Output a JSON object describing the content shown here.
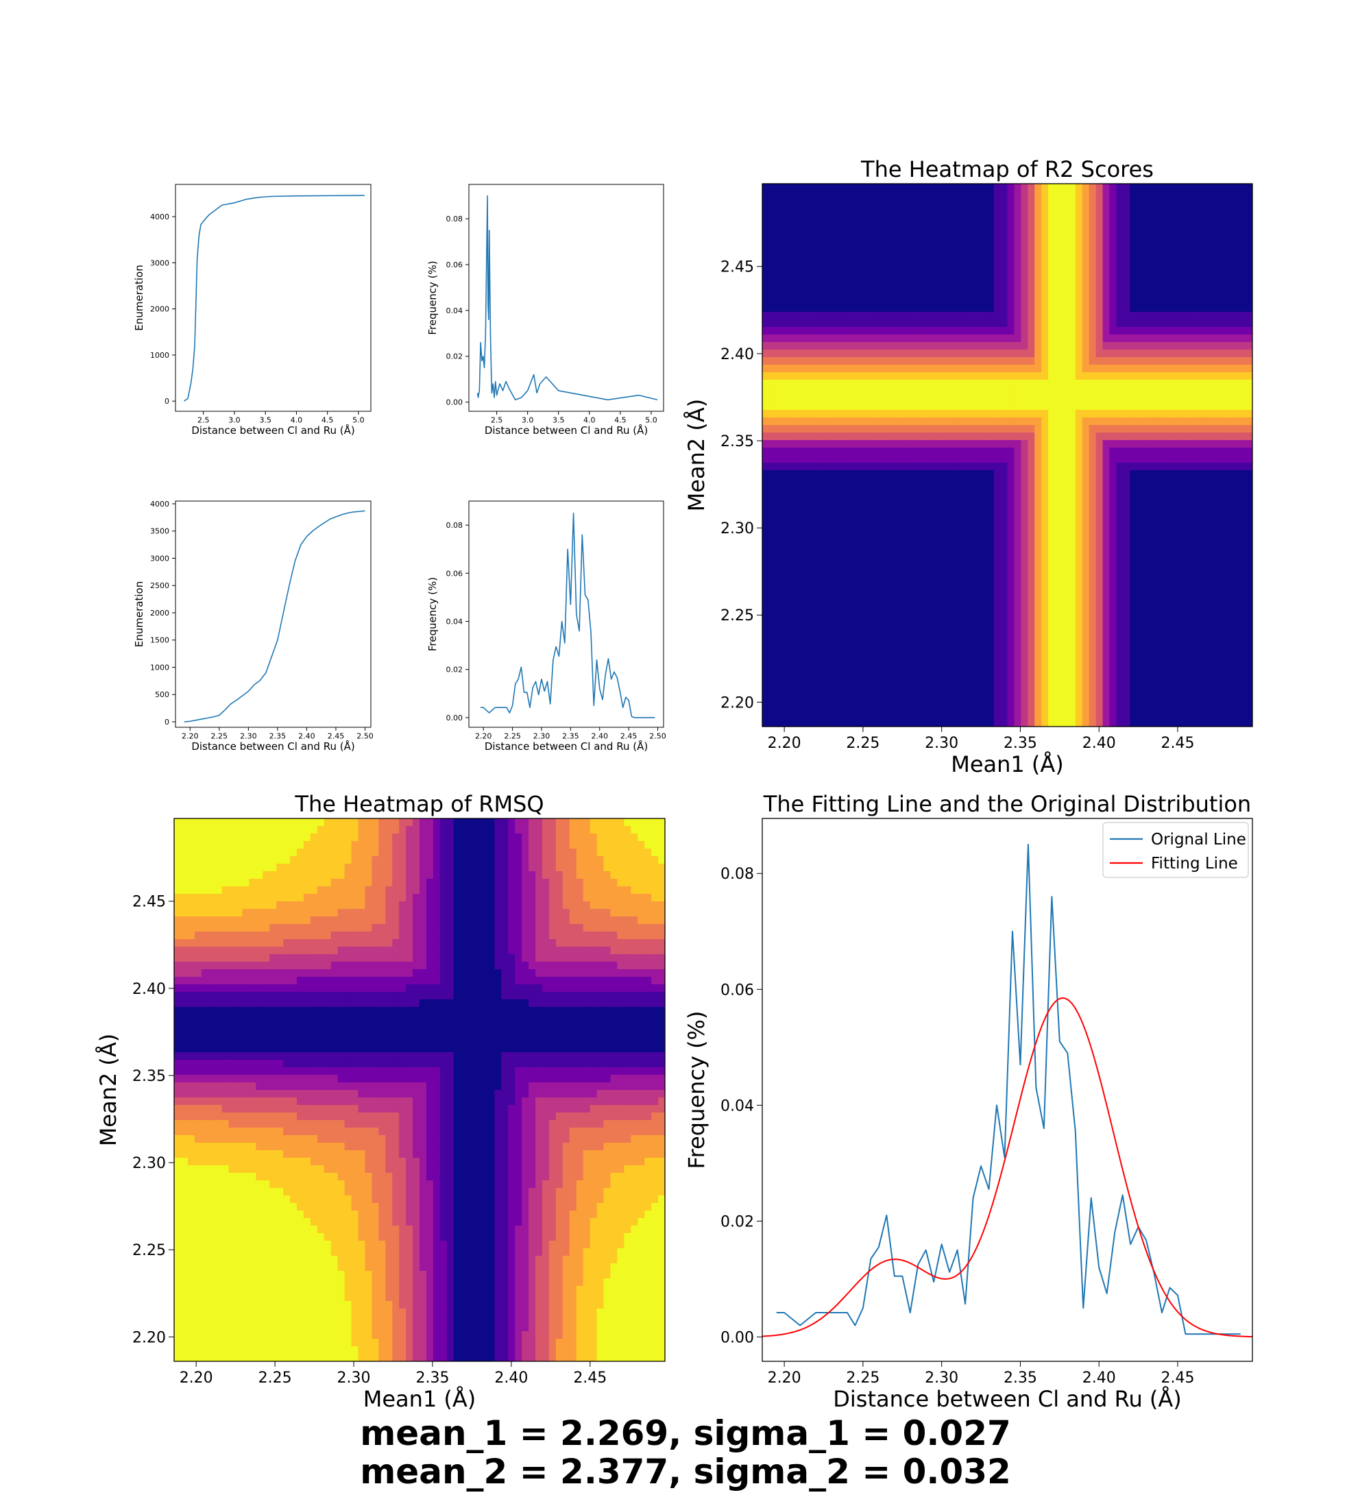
{
  "colors": {
    "line": "#1f77b4",
    "fit": "#ff0000",
    "axis": "#000000",
    "plasma": [
      "#0d0887",
      "#46039f",
      "#7201a8",
      "#9c179e",
      "#bd3786",
      "#d8576b",
      "#ed7953",
      "#fb9f3a",
      "#fdca26",
      "#f0f921"
    ]
  },
  "footer": {
    "line1": "mean_1 = 2.269, sigma_1 = 0.027",
    "line2": "mean_2 = 2.377, sigma_2 = 0.032"
  },
  "chart_data": [
    {
      "id": "p1",
      "type": "line",
      "xlabel": "Distance between Cl and Ru (Å)",
      "ylabel": "Enumeration",
      "xlim": [
        2.05,
        5.2
      ],
      "ylim": [
        -220,
        4700
      ],
      "xticks": [
        2.5,
        3.0,
        3.5,
        4.0,
        4.5,
        5.0
      ],
      "xticklabels": [
        "2.5",
        "3.0",
        "3.5",
        "4.0",
        "4.5",
        "5.0"
      ],
      "yticks": [
        0,
        1000,
        2000,
        3000,
        4000
      ],
      "yticklabels": [
        "0",
        "1000",
        "2000",
        "3000",
        "4000"
      ],
      "series": [
        {
          "x": [
            2.19,
            2.25,
            2.3,
            2.33,
            2.36,
            2.4,
            2.43,
            2.46,
            2.5,
            2.55,
            2.6,
            2.7,
            2.8,
            3.0,
            3.2,
            3.4,
            3.6,
            4.0,
            4.5,
            5.1
          ],
          "y": [
            0,
            60,
            400,
            700,
            1200,
            3100,
            3600,
            3830,
            3900,
            3980,
            4050,
            4150,
            4250,
            4300,
            4380,
            4420,
            4440,
            4450,
            4455,
            4460
          ]
        }
      ]
    },
    {
      "id": "p2",
      "type": "line",
      "xlabel": "Distance between Cl and Ru (Å)",
      "ylabel": "Frequency (%)",
      "xlim": [
        2.05,
        5.2
      ],
      "ylim": [
        -0.004,
        0.095
      ],
      "xticks": [
        2.5,
        3.0,
        3.5,
        4.0,
        4.5,
        5.0
      ],
      "xticklabels": [
        "2.5",
        "3.0",
        "3.5",
        "4.0",
        "4.5",
        "5.0"
      ],
      "yticks": [
        0.0,
        0.02,
        0.04,
        0.06,
        0.08
      ],
      "yticklabels": [
        "0.00",
        "0.02",
        "0.04",
        "0.06",
        "0.08"
      ],
      "series": [
        {
          "x": [
            2.19,
            2.2,
            2.22,
            2.24,
            2.26,
            2.28,
            2.3,
            2.32,
            2.34,
            2.35,
            2.36,
            2.37,
            2.38,
            2.39,
            2.4,
            2.42,
            2.44,
            2.46,
            2.48,
            2.5,
            2.55,
            2.6,
            2.65,
            2.7,
            2.8,
            2.9,
            3.0,
            3.1,
            3.15,
            3.2,
            3.3,
            3.5,
            4.3,
            4.8,
            5.1
          ],
          "y": [
            0.004,
            0.002,
            0.005,
            0.026,
            0.018,
            0.02,
            0.015,
            0.03,
            0.07,
            0.09,
            0.043,
            0.036,
            0.075,
            0.05,
            0.028,
            0.004,
            0.008,
            0.002,
            0.009,
            0.003,
            0.008,
            0.005,
            0.009,
            0.006,
            0.001,
            0.002,
            0.005,
            0.012,
            0.004,
            0.008,
            0.011,
            0.005,
            0.001,
            0.003,
            0.001
          ]
        }
      ]
    },
    {
      "id": "p3",
      "type": "line",
      "xlabel": "Distance between Cl and Ru (Å)",
      "ylabel": "Enumeration",
      "xlim": [
        2.175,
        2.51
      ],
      "ylim": [
        -100,
        4050
      ],
      "xticks": [
        2.2,
        2.25,
        2.3,
        2.35,
        2.4,
        2.45,
        2.5
      ],
      "xticklabels": [
        "2.20",
        "2.25",
        "2.30",
        "2.35",
        "2.40",
        "2.45",
        "2.50"
      ],
      "yticks": [
        0,
        500,
        1000,
        1500,
        2000,
        2500,
        3000,
        3500,
        4000
      ],
      "yticklabels": [
        "0",
        "500",
        "1000",
        "1500",
        "2000",
        "2500",
        "3000",
        "3500",
        "4000"
      ],
      "series": [
        {
          "x": [
            2.19,
            2.2,
            2.21,
            2.22,
            2.23,
            2.24,
            2.25,
            2.26,
            2.27,
            2.28,
            2.29,
            2.3,
            2.31,
            2.32,
            2.33,
            2.34,
            2.35,
            2.36,
            2.37,
            2.38,
            2.39,
            2.4,
            2.41,
            2.42,
            2.43,
            2.44,
            2.45,
            2.46,
            2.47,
            2.48,
            2.49,
            2.5
          ],
          "y": [
            0,
            10,
            30,
            50,
            70,
            90,
            120,
            220,
            330,
            400,
            480,
            560,
            680,
            760,
            900,
            1200,
            1500,
            2000,
            2500,
            2950,
            3250,
            3400,
            3500,
            3580,
            3650,
            3720,
            3760,
            3800,
            3830,
            3850,
            3860,
            3870
          ]
        }
      ]
    },
    {
      "id": "p4",
      "type": "line",
      "xlabel": "Distance between Cl and Ru (Å)",
      "ylabel": "Frequency (%)",
      "xlim": [
        2.175,
        2.51
      ],
      "ylim": [
        -0.004,
        0.09
      ],
      "xticks": [
        2.2,
        2.25,
        2.3,
        2.35,
        2.4,
        2.45,
        2.5
      ],
      "xticklabels": [
        "2.20",
        "2.25",
        "2.30",
        "2.35",
        "2.40",
        "2.45",
        "2.50"
      ],
      "yticks": [
        0.0,
        0.02,
        0.04,
        0.06,
        0.08
      ],
      "yticklabels": [
        "0.00",
        "0.02",
        "0.04",
        "0.06",
        "0.08"
      ],
      "series": [
        {
          "x": [
            2.195,
            2.2,
            2.21,
            2.22,
            2.23,
            2.24,
            2.245,
            2.25,
            2.255,
            2.26,
            2.265,
            2.27,
            2.275,
            2.28,
            2.285,
            2.29,
            2.295,
            2.3,
            2.305,
            2.31,
            2.315,
            2.32,
            2.325,
            2.33,
            2.335,
            2.34,
            2.345,
            2.35,
            2.355,
            2.36,
            2.365,
            2.37,
            2.375,
            2.38,
            2.385,
            2.39,
            2.395,
            2.4,
            2.405,
            2.41,
            2.415,
            2.42,
            2.425,
            2.43,
            2.435,
            2.44,
            2.445,
            2.45,
            2.455,
            2.46,
            2.465,
            2.47,
            2.475,
            2.48,
            2.485,
            2.49,
            2.495
          ],
          "y": [
            0.0042,
            0.0042,
            0.002,
            0.0042,
            0.0042,
            0.0042,
            0.002,
            0.005,
            0.014,
            0.016,
            0.021,
            0.0105,
            0.0105,
            0.0042,
            0.0125,
            0.015,
            0.0095,
            0.016,
            0.011,
            0.015,
            0.0057,
            0.024,
            0.0295,
            0.0255,
            0.04,
            0.031,
            0.07,
            0.047,
            0.085,
            0.043,
            0.036,
            0.076,
            0.051,
            0.049,
            0.0355,
            0.005,
            0.024,
            0.012,
            0.0075,
            0.018,
            0.0245,
            0.016,
            0.019,
            0.0167,
            0.011,
            0.0042,
            0.0085,
            0.0072,
            0.0005,
            0.0,
            0.0,
            0.0,
            0.0,
            0.0,
            0.0,
            0.0,
            0.0
          ]
        }
      ]
    },
    {
      "id": "h1",
      "type": "heatmap",
      "title": "The Heatmap of R2 Scores",
      "xlabel": "Mean1 (Å)",
      "ylabel": "Mean2 (Å)",
      "xlim": [
        2.186,
        2.4975
      ],
      "ylim": [
        2.186,
        2.4975
      ],
      "xticks": [
        2.2,
        2.25,
        2.3,
        2.35,
        2.4,
        2.45
      ],
      "xticklabels": [
        "2.20",
        "2.25",
        "2.30",
        "2.35",
        "2.40",
        "2.45"
      ],
      "yticks": [
        2.2,
        2.25,
        2.3,
        2.35,
        2.4,
        2.45
      ],
      "yticklabels": [
        "2.20",
        "2.25",
        "2.30",
        "2.35",
        "2.40",
        "2.45"
      ],
      "field": {
        "kind": "r2",
        "center_x": 2.377,
        "center_y": 2.377,
        "width_x": 0.028,
        "width_y": 0.03,
        "levels": 10
      }
    },
    {
      "id": "h2",
      "type": "heatmap",
      "title": "The Heatmap of RMSQ",
      "xlabel": "Mean1 (Å)",
      "ylabel": "Mean2 (Å)",
      "xlim": [
        2.186,
        2.4975
      ],
      "ylim": [
        2.186,
        2.4975
      ],
      "xticks": [
        2.2,
        2.25,
        2.3,
        2.35,
        2.4,
        2.45
      ],
      "xticklabels": [
        "2.20",
        "2.25",
        "2.30",
        "2.35",
        "2.40",
        "2.45"
      ],
      "yticks": [
        2.2,
        2.25,
        2.3,
        2.35,
        2.4,
        2.45
      ],
      "yticklabels": [
        "2.20",
        "2.25",
        "2.30",
        "2.35",
        "2.40",
        "2.45"
      ],
      "field": {
        "kind": "rmsq",
        "center_x": 2.377,
        "center_y": 2.377,
        "levels": 20
      }
    },
    {
      "id": "fit",
      "type": "line",
      "title": "The Fitting Line and the Original Distribution",
      "xlabel": "Distance between Cl and Ru (Å)",
      "ylabel": "Frequency (%)",
      "xlim": [
        2.186,
        2.4975
      ],
      "ylim": [
        -0.0042,
        0.0895
      ],
      "xticks": [
        2.2,
        2.25,
        2.3,
        2.35,
        2.4,
        2.45
      ],
      "xticklabels": [
        "2.20",
        "2.25",
        "2.30",
        "2.35",
        "2.40",
        "2.45"
      ],
      "yticks": [
        0.0,
        0.02,
        0.04,
        0.06,
        0.08
      ],
      "yticklabels": [
        "0.00",
        "0.02",
        "0.04",
        "0.06",
        "0.08"
      ],
      "legend": "top-right",
      "series": [
        {
          "name": "Orignal Line",
          "x": [
            2.195,
            2.2,
            2.21,
            2.22,
            2.23,
            2.24,
            2.245,
            2.25,
            2.255,
            2.26,
            2.265,
            2.27,
            2.275,
            2.28,
            2.285,
            2.29,
            2.295,
            2.3,
            2.305,
            2.31,
            2.315,
            2.32,
            2.325,
            2.33,
            2.335,
            2.34,
            2.345,
            2.35,
            2.355,
            2.36,
            2.365,
            2.37,
            2.375,
            2.38,
            2.385,
            2.39,
            2.395,
            2.4,
            2.405,
            2.41,
            2.415,
            2.42,
            2.425,
            2.43,
            2.435,
            2.44,
            2.445,
            2.45,
            2.455,
            2.46,
            2.465,
            2.47,
            2.475,
            2.48,
            2.485,
            2.49
          ],
          "y": [
            0.0042,
            0.0042,
            0.002,
            0.0042,
            0.0042,
            0.0042,
            0.002,
            0.005,
            0.0135,
            0.0155,
            0.021,
            0.0105,
            0.0105,
            0.0042,
            0.0125,
            0.015,
            0.0095,
            0.016,
            0.0112,
            0.015,
            0.0057,
            0.024,
            0.0295,
            0.0255,
            0.04,
            0.031,
            0.07,
            0.047,
            0.085,
            0.043,
            0.036,
            0.076,
            0.051,
            0.049,
            0.0355,
            0.005,
            0.024,
            0.012,
            0.0075,
            0.018,
            0.0245,
            0.016,
            0.019,
            0.0167,
            0.011,
            0.0042,
            0.0085,
            0.0072,
            0.0005,
            0.0005,
            0.0005,
            0.0005,
            0.0005,
            0.0005,
            0.0005,
            0.0005
          ]
        },
        {
          "name": "Fitting Line",
          "type": "two-gaussian",
          "params": {
            "a1": 0.0132,
            "mu1": 2.269,
            "s1": 0.027,
            "a2": 0.0585,
            "mu2": 2.377,
            "s2": 0.032
          }
        }
      ]
    }
  ]
}
